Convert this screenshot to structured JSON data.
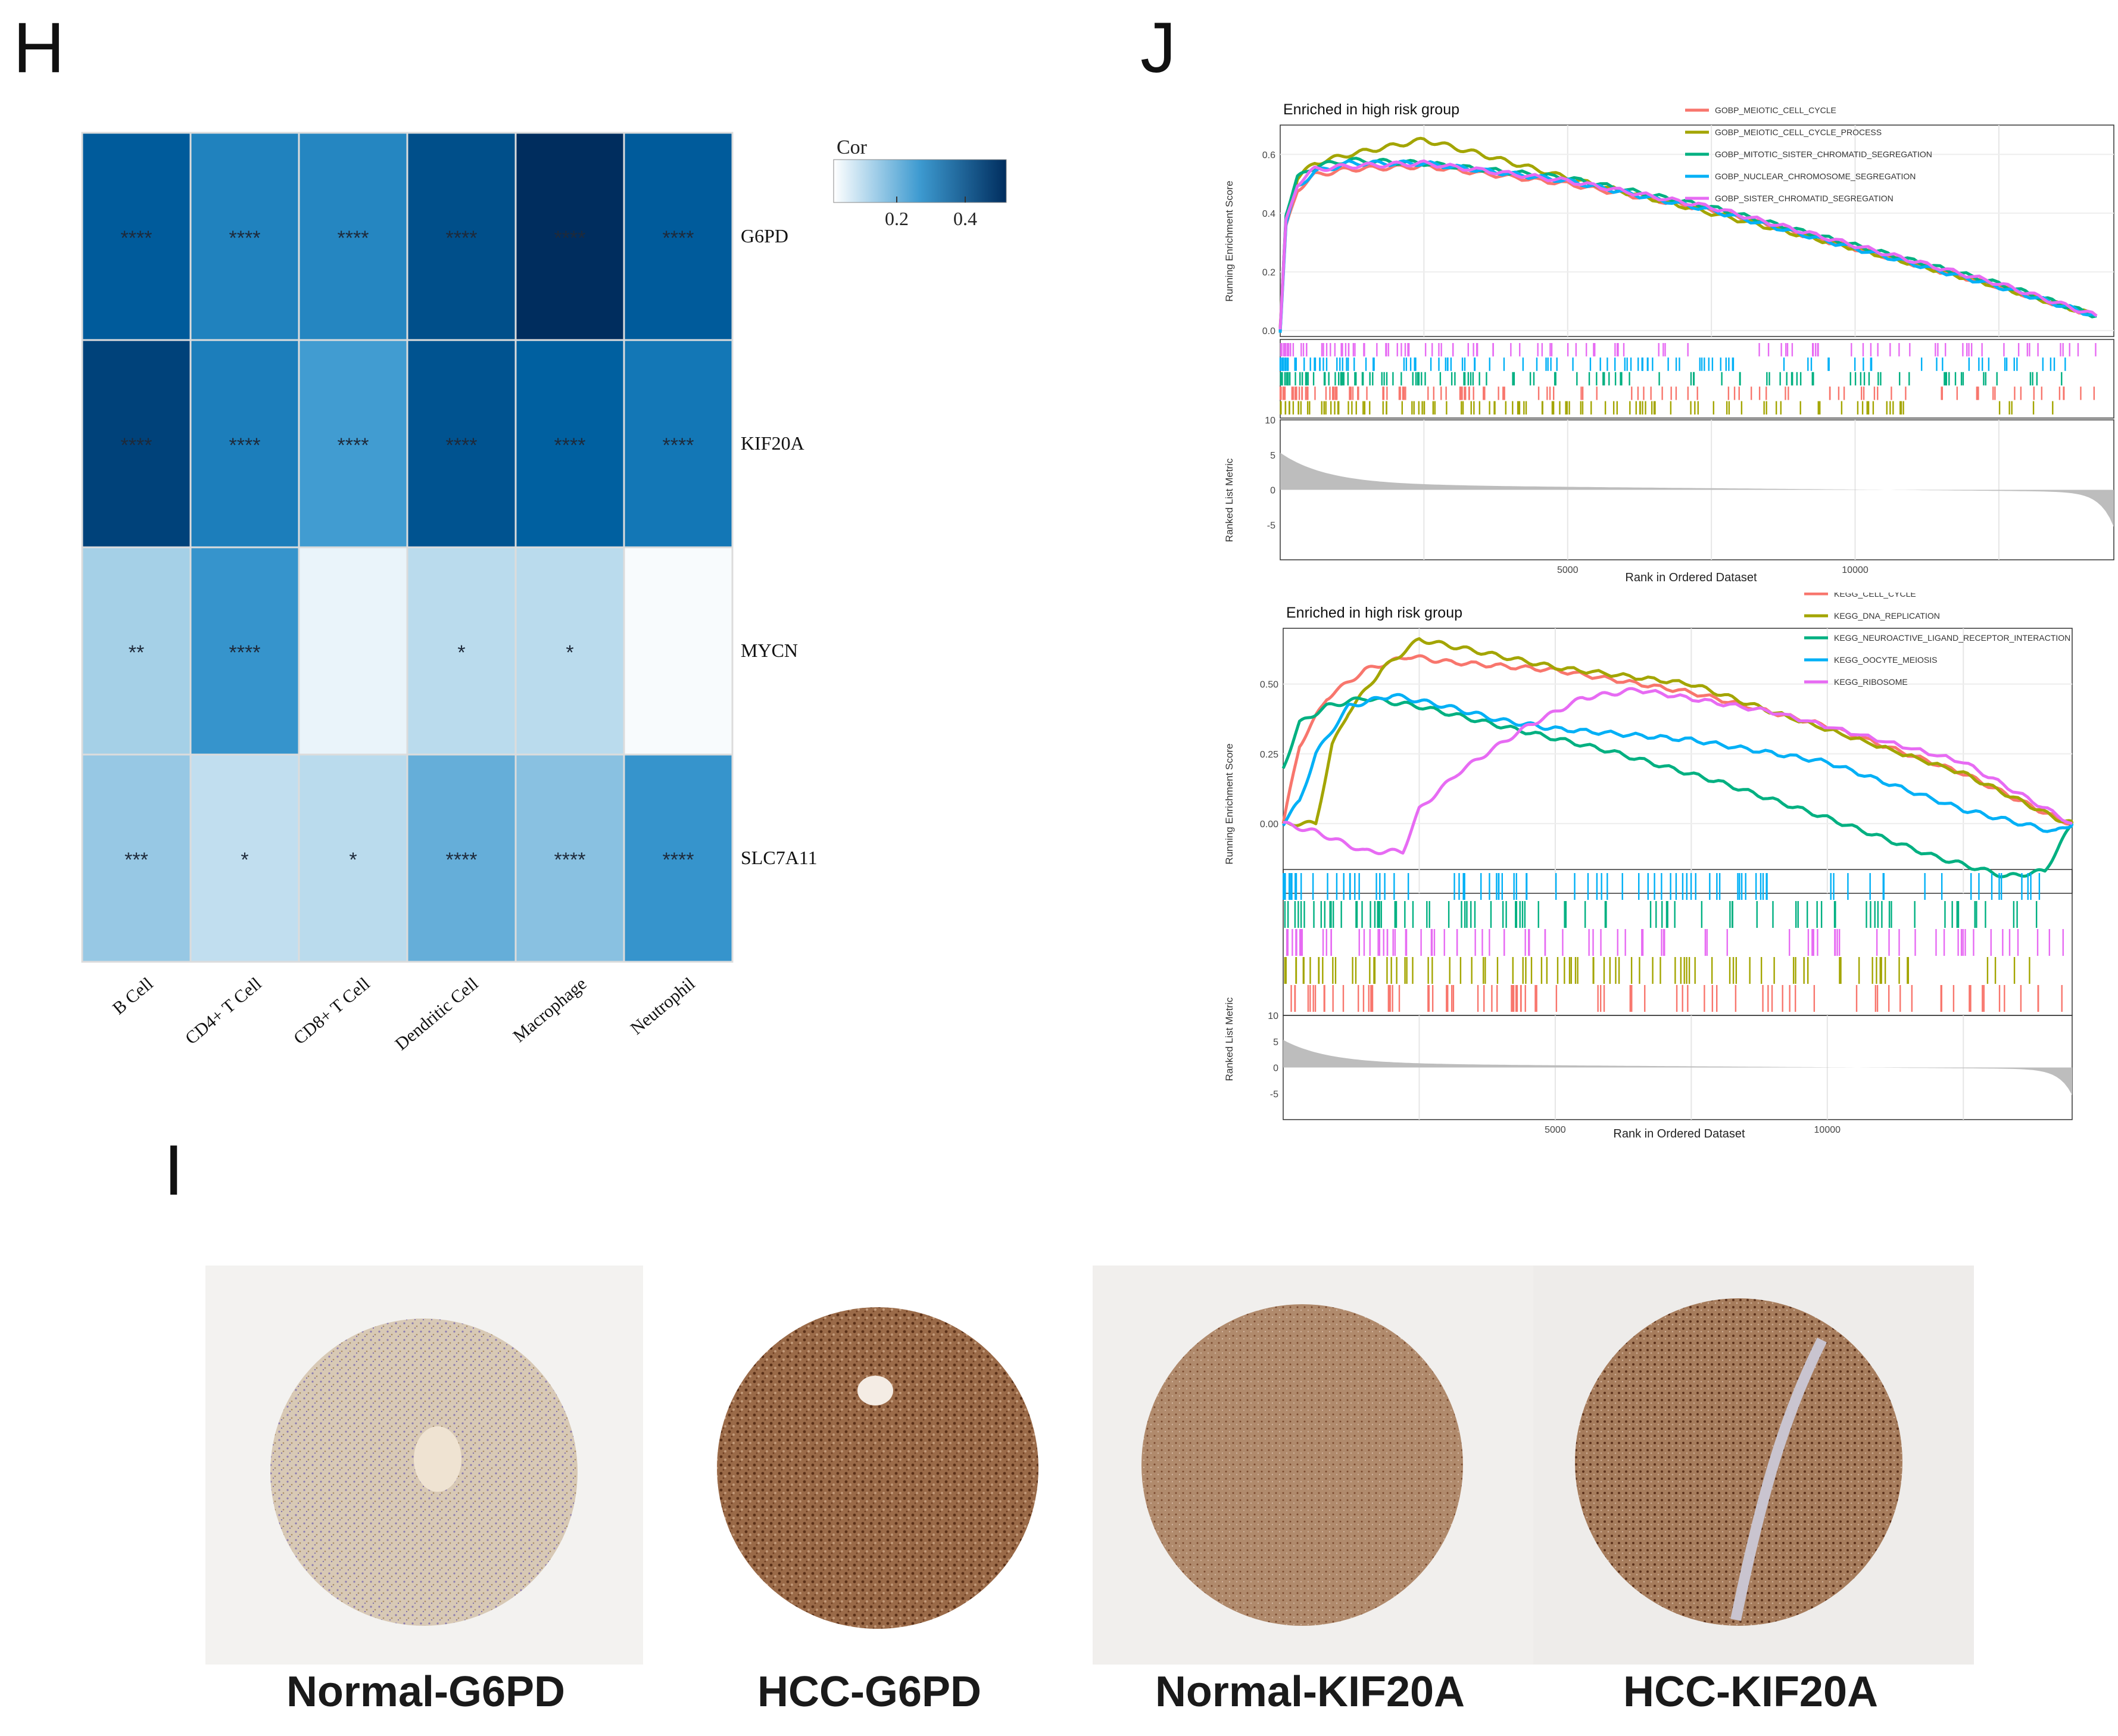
{
  "panels": {
    "H": "H",
    "J": "J",
    "I": "I"
  },
  "chart_data": [
    {
      "type": "heatmap",
      "panel": "H",
      "title": "",
      "legend_title": "Cor",
      "legend_ticks": [
        "0.2",
        "0.4"
      ],
      "legend_range": [
        0.0,
        0.55
      ],
      "colorscale": [
        "#ffffff",
        "#002d5e"
      ],
      "rows": [
        "G6PD",
        "KIF20A",
        "MYCN",
        "SLC7A11"
      ],
      "columns": [
        "B Cell",
        "CD4+ T Cell",
        "CD8+ T Cell",
        "Dendritic Cell",
        "Macrophage",
        "Neutrophil"
      ],
      "values": [
        [
          0.44,
          0.34,
          0.33,
          0.47,
          0.58,
          0.44
        ],
        [
          0.5,
          0.35,
          0.27,
          0.46,
          0.43,
          0.37
        ],
        [
          0.13,
          0.29,
          0.03,
          0.1,
          0.1,
          0.01
        ],
        [
          0.15,
          0.09,
          0.1,
          0.22,
          0.17,
          0.29
        ]
      ],
      "significance": [
        [
          "****",
          "****",
          "****",
          "****",
          "****",
          "****"
        ],
        [
          "****",
          "****",
          "****",
          "****",
          "****",
          "****"
        ],
        [
          "**",
          "****",
          "",
          "*",
          "*",
          ""
        ],
        [
          "***",
          "*",
          "*",
          "****",
          "****",
          "****"
        ]
      ]
    },
    {
      "type": "line",
      "panel": "J-top",
      "title": "Enriched in high risk group",
      "ylabel": "Running Enrichment Score",
      "ylabel_lower": "Ranked List Metric",
      "xlabel": "Rank in Ordered Dataset",
      "xlim": [
        0,
        14500
      ],
      "ylim": [
        -0.02,
        0.7
      ],
      "yticks": [
        "0.0",
        "0.2",
        "0.4",
        "0.6"
      ],
      "xticks": [
        "5000",
        "10000"
      ],
      "metric_ticks": [
        "10",
        "5",
        "0",
        "-5"
      ],
      "series": [
        {
          "name": "GOBP_MEIOTIC_CELL_CYCLE",
          "color": "#f8766d",
          "x": [
            0,
            100,
            300,
            600,
            1200,
            2500,
            5000,
            7500,
            10000,
            12500,
            14200
          ],
          "values": [
            0,
            0.35,
            0.48,
            0.53,
            0.55,
            0.56,
            0.5,
            0.41,
            0.28,
            0.15,
            0.05
          ]
        },
        {
          "name": "GOBP_MEIOTIC_CELL_CYCLE_PROCESS",
          "color": "#a3a500",
          "x": [
            0,
            100,
            300,
            600,
            1200,
            2500,
            3500,
            5000,
            7500,
            10000,
            12500,
            14200
          ],
          "values": [
            0,
            0.38,
            0.52,
            0.57,
            0.6,
            0.65,
            0.6,
            0.52,
            0.4,
            0.28,
            0.15,
            0.05
          ]
        },
        {
          "name": "GOBP_MITOTIC_SISTER_CHROMATID_SEGREGATION",
          "color": "#00b081",
          "x": [
            0,
            100,
            300,
            600,
            1200,
            2500,
            5000,
            7500,
            10000,
            12500,
            14200
          ],
          "values": [
            0,
            0.4,
            0.52,
            0.56,
            0.58,
            0.57,
            0.52,
            0.42,
            0.29,
            0.16,
            0.05
          ]
        },
        {
          "name": "GOBP_NUCLEAR_CHROMOSOME_SEGREGATION",
          "color": "#00b0f6",
          "x": [
            0,
            100,
            300,
            600,
            1200,
            2500,
            5000,
            7500,
            10000,
            12500,
            14200
          ],
          "values": [
            0,
            0.36,
            0.49,
            0.54,
            0.57,
            0.57,
            0.51,
            0.41,
            0.28,
            0.15,
            0.05
          ]
        },
        {
          "name": "GOBP_SISTER_CHROMATID_SEGREGATION",
          "color": "#e76bf3",
          "x": [
            0,
            100,
            300,
            600,
            1200,
            2500,
            5000,
            7500,
            10000,
            12500,
            14200
          ],
          "values": [
            0,
            0.37,
            0.5,
            0.55,
            0.56,
            0.57,
            0.51,
            0.42,
            0.29,
            0.16,
            0.05
          ]
        }
      ]
    },
    {
      "type": "line",
      "panel": "J-bottom",
      "title": "Enriched in high risk group",
      "ylabel": "Running Enrichment Score",
      "ylabel_lower": "Ranked List Metric",
      "xlabel": "Rank in Ordered Dataset",
      "xlim": [
        0,
        14500
      ],
      "ylim": [
        -0.25,
        0.7
      ],
      "yticks": [
        "0.00",
        "0.25",
        "0.50"
      ],
      "xticks": [
        "5000",
        "10000"
      ],
      "metric_ticks": [
        "10",
        "5",
        "0",
        "-5"
      ],
      "series": [
        {
          "name": "KEGG_CELL_CYCLE",
          "color": "#f8766d",
          "x": [
            0,
            300,
            800,
            1500,
            2300,
            3000,
            5000,
            7500,
            10000,
            12500,
            14200,
            14500
          ],
          "values": [
            0,
            0.28,
            0.45,
            0.55,
            0.6,
            0.58,
            0.55,
            0.47,
            0.35,
            0.18,
            0.02,
            0.0
          ]
        },
        {
          "name": "KEGG_DNA_REPLICATION",
          "color": "#a3a500",
          "x": [
            0,
            600,
            900,
            1200,
            1800,
            2500,
            3500,
            5000,
            7500,
            9000,
            12500,
            14200,
            14500
          ],
          "values": [
            0,
            0.0,
            0.28,
            0.4,
            0.55,
            0.66,
            0.62,
            0.56,
            0.5,
            0.4,
            0.18,
            0.02,
            0.0
          ]
        },
        {
          "name": "KEGG_NEUROACTIVE_LIGAND_RECEPTOR_INTERACTION",
          "color": "#00b081",
          "x": [
            0,
            300,
            800,
            1500,
            2500,
            4000,
            6000,
            8000,
            10000,
            12000,
            13300,
            14000,
            14500
          ],
          "values": [
            0.2,
            0.36,
            0.42,
            0.45,
            0.42,
            0.35,
            0.26,
            0.15,
            0.02,
            -0.12,
            -0.19,
            -0.17,
            0.0
          ]
        },
        {
          "name": "KEGG_OOCYTE_MEIOSIS",
          "color": "#00b0f6",
          "x": [
            0,
            300,
            600,
            1200,
            2000,
            3000,
            4000,
            5000,
            7500,
            10000,
            12500,
            14200,
            14500
          ],
          "values": [
            0,
            0.08,
            0.25,
            0.42,
            0.46,
            0.42,
            0.37,
            0.34,
            0.3,
            0.22,
            0.05,
            -0.03,
            0.0
          ]
        },
        {
          "name": "KEGG_RIBOSOME",
          "color": "#e76bf3",
          "x": [
            0,
            600,
            1500,
            2200,
            2500,
            3200,
            3800,
            4500,
            5500,
            6500,
            9000,
            12500,
            14500
          ],
          "values": [
            0,
            -0.03,
            -0.1,
            -0.1,
            0.05,
            0.18,
            0.26,
            0.35,
            0.45,
            0.48,
            0.4,
            0.22,
            0.0
          ]
        }
      ]
    }
  ],
  "ihc_labels": [
    "Normal-G6PD",
    "HCC-G6PD",
    "Normal-KIF20A",
    "HCC-KIF20A"
  ]
}
